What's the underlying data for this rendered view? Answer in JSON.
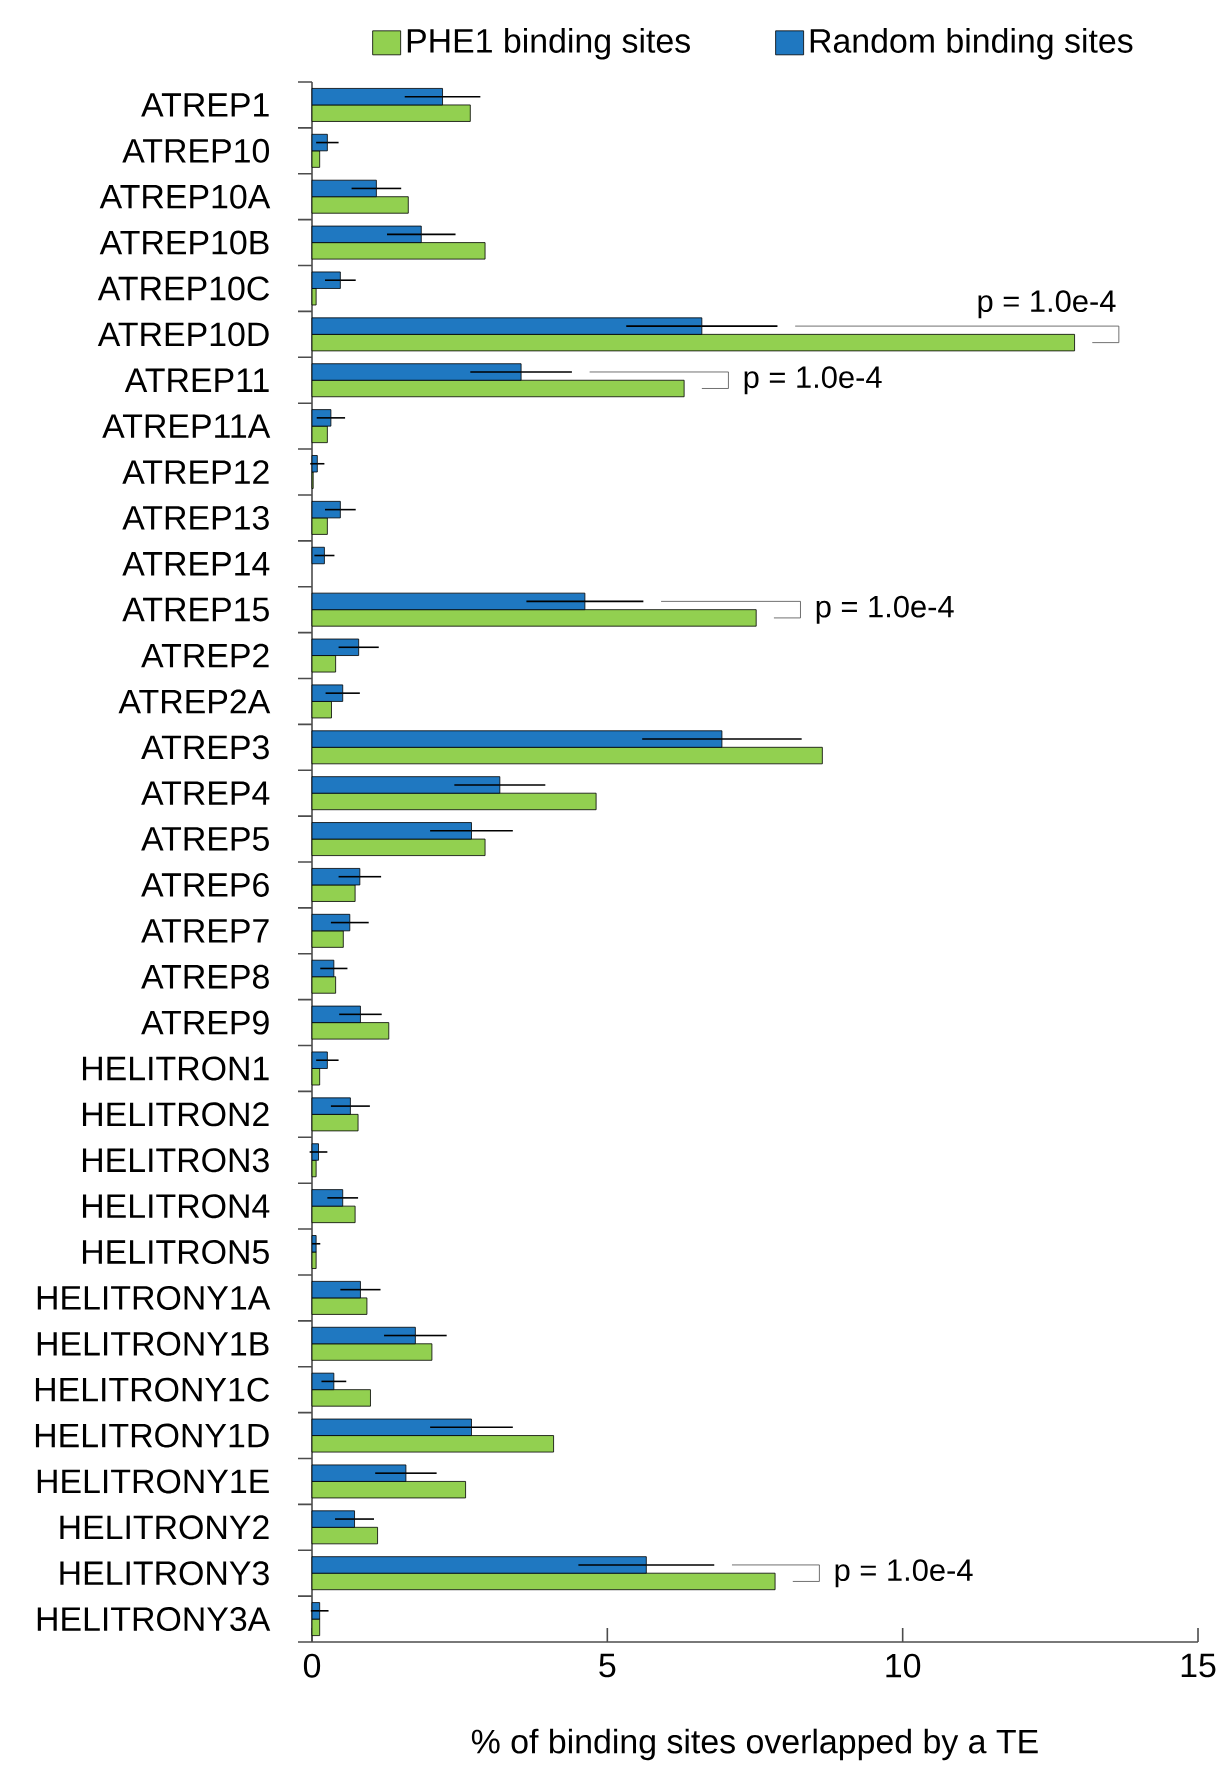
{
  "chart_data": {
    "type": "bar",
    "orientation": "horizontal",
    "xlabel": "% of binding sites overlapped by a TE",
    "categories": [
      "ATREP1",
      "ATREP10",
      "ATREP10A",
      "ATREP10B",
      "ATREP10C",
      "ATREP10D",
      "ATREP11",
      "ATREP11A",
      "ATREP12",
      "ATREP13",
      "ATREP14",
      "ATREP15",
      "ATREP2",
      "ATREP2A",
      "ATREP3",
      "ATREP4",
      "ATREP5",
      "ATREP6",
      "ATREP7",
      "ATREP8",
      "ATREP9",
      "HELITRON1",
      "HELITRON2",
      "HELITRON3",
      "HELITRON4",
      "HELITRON5",
      "HELITRONY1A",
      "HELITRONY1B",
      "HELITRONY1C",
      "HELITRONY1D",
      "HELITRONY1E",
      "HELITRONY2",
      "HELITRONY3",
      "HELITRONY3A"
    ],
    "series": [
      {
        "name": "PHE1 binding sites",
        "color": "#92d050",
        "values": [
          2.68,
          0.13,
          1.63,
          2.93,
          0.07,
          12.91,
          6.3,
          0.26,
          0.02,
          0.26,
          null,
          7.52,
          0.4,
          0.33,
          8.64,
          4.81,
          2.93,
          0.73,
          0.53,
          0.4,
          1.3,
          0.13,
          0.78,
          0.07,
          0.73,
          0.07,
          0.93,
          2.03,
          0.99,
          4.09,
          2.6,
          1.11,
          7.84,
          0.13
        ]
      },
      {
        "name": "Random binding sites",
        "color": "#1f78c1",
        "values": [
          2.21,
          0.26,
          1.09,
          1.85,
          0.48,
          6.6,
          3.54,
          0.32,
          0.09,
          0.48,
          0.21,
          4.62,
          0.79,
          0.52,
          6.94,
          3.18,
          2.7,
          0.81,
          0.64,
          0.37,
          0.82,
          0.26,
          0.65,
          0.11,
          0.52,
          0.07,
          0.82,
          1.75,
          0.37,
          2.7,
          1.59,
          0.72,
          5.66,
          0.13
        ],
        "errors": [
          0.64,
          0.19,
          0.42,
          0.58,
          0.26,
          1.28,
          0.86,
          0.24,
          0.12,
          0.26,
          0.17,
          0.99,
          0.34,
          0.29,
          1.35,
          0.77,
          0.7,
          0.36,
          0.32,
          0.23,
          0.36,
          0.19,
          0.33,
          0.15,
          0.26,
          0.07,
          0.34,
          0.53,
          0.21,
          0.7,
          0.52,
          0.33,
          1.15,
          0.15
        ]
      }
    ],
    "xlim": [
      0,
      15
    ],
    "xticks": [
      0,
      5,
      10,
      15
    ],
    "legend": "top",
    "grid": false,
    "annotations": [
      {
        "text": "p = 1.0e-4",
        "x": 12.91,
        "y": "ATREP10D"
      },
      {
        "text": "p = 1.0e-4",
        "x": 6.3,
        "y": "ATREP11"
      },
      {
        "text": "p = 1.0e-4",
        "x": 7.52,
        "y": "ATREP15"
      },
      {
        "text": "p = 1.0e-4",
        "x": 7.84,
        "y": "HELITRONY3"
      }
    ]
  }
}
